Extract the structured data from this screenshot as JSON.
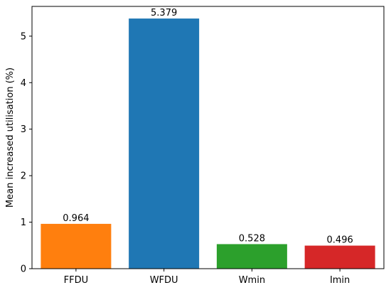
{
  "chart_data": {
    "type": "bar",
    "title": "",
    "xlabel": "",
    "ylabel": "Mean increased utilisation (%)",
    "categories": [
      "FFDU",
      "WFDU",
      "Wmin",
      "Imin"
    ],
    "values": [
      0.964,
      5.379,
      0.528,
      0.496
    ],
    "value_labels": [
      "0.964",
      "5.379",
      "0.528",
      "0.496"
    ],
    "colors": [
      "#ff7f0e",
      "#1f77b4",
      "#2ca02c",
      "#d62728"
    ],
    "ylim": [
      0,
      5.64
    ],
    "yticks": [
      0,
      1,
      2,
      3,
      4,
      5
    ],
    "ytick_labels": [
      "0",
      "1",
      "2",
      "3",
      "4",
      "5"
    ],
    "grid": false,
    "legend": "none"
  }
}
